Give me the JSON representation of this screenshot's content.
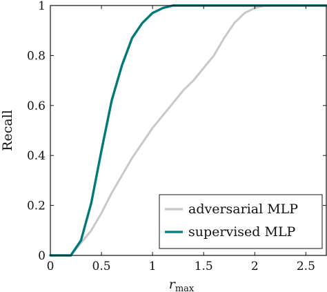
{
  "chart_data": {
    "type": "line",
    "xlabel": "r",
    "xlabel_subscript": "max",
    "ylabel": "Recall",
    "xlim": [
      0,
      2.7
    ],
    "ylim": [
      0,
      1
    ],
    "x_ticks": [
      0,
      0.5,
      1,
      1.5,
      2,
      2.5
    ],
    "x_tick_labels": [
      "0",
      "0.5",
      "1",
      "1.5",
      "2",
      "2.5"
    ],
    "y_ticks": [
      0,
      0.2,
      0.4,
      0.6,
      0.8,
      1
    ],
    "y_tick_labels": [
      "0",
      "0.2",
      "0.4",
      "0.6",
      "0.8",
      "1"
    ],
    "grid": false,
    "legend_position": "bottom-right",
    "series": [
      {
        "name": "adversarial MLP",
        "color": "#c8c8c8",
        "points": [
          [
            0,
            0
          ],
          [
            0.2,
            0
          ],
          [
            0.3,
            0.05
          ],
          [
            0.4,
            0.1
          ],
          [
            0.5,
            0.17
          ],
          [
            0.6,
            0.25
          ],
          [
            0.7,
            0.32
          ],
          [
            0.8,
            0.39
          ],
          [
            0.9,
            0.45
          ],
          [
            1.0,
            0.51
          ],
          [
            1.1,
            0.56
          ],
          [
            1.2,
            0.61
          ],
          [
            1.3,
            0.66
          ],
          [
            1.4,
            0.7
          ],
          [
            1.5,
            0.75
          ],
          [
            1.6,
            0.8
          ],
          [
            1.7,
            0.87
          ],
          [
            1.8,
            0.93
          ],
          [
            1.9,
            0.97
          ],
          [
            2.0,
            0.99
          ],
          [
            2.1,
            1.0
          ],
          [
            2.7,
            1.0
          ]
        ]
      },
      {
        "name": "supervised MLP",
        "color": "#007a78",
        "points": [
          [
            0,
            0
          ],
          [
            0.2,
            0
          ],
          [
            0.3,
            0.06
          ],
          [
            0.4,
            0.21
          ],
          [
            0.5,
            0.42
          ],
          [
            0.6,
            0.62
          ],
          [
            0.7,
            0.76
          ],
          [
            0.8,
            0.87
          ],
          [
            0.9,
            0.93
          ],
          [
            1.0,
            0.97
          ],
          [
            1.1,
            0.99
          ],
          [
            1.2,
            1.0
          ],
          [
            2.7,
            1.0
          ]
        ]
      }
    ]
  }
}
